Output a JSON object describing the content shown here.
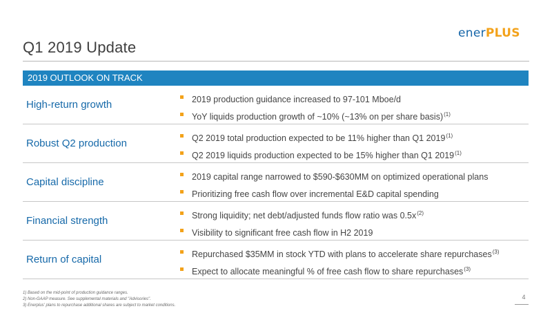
{
  "slide": {
    "title": "Q1 2019 Update",
    "page_number": "4"
  },
  "logo": {
    "part1": "ener",
    "part2": "PLUS"
  },
  "banner": "2019 OUTLOOK ON TRACK",
  "rows": [
    {
      "label": "High-return growth",
      "bullets": [
        {
          "text": "2019 production guidance increased to 97-101 Mboe/d",
          "sup": ""
        },
        {
          "text": "YoY liquids production growth of ~10% (~13% on per share basis)",
          "sup": "(1)"
        }
      ]
    },
    {
      "label": "Robust Q2 production",
      "bullets": [
        {
          "text": "Q2 2019 total production expected to be 11% higher than Q1 2019",
          "sup": "(1)"
        },
        {
          "text": "Q2 2019 liquids production expected to be 15% higher than Q1 2019",
          "sup": "(1)"
        }
      ]
    },
    {
      "label": "Capital discipline",
      "bullets": [
        {
          "text": "2019 capital range narrowed to $590-$630MM on optimized operational plans",
          "sup": ""
        },
        {
          "text": "Prioritizing free cash flow over incremental E&D capital spending",
          "sup": ""
        }
      ]
    },
    {
      "label": "Financial strength",
      "bullets": [
        {
          "text": "Strong liquidity; net debt/adjusted funds flow ratio was 0.5x",
          "sup": "(2)"
        },
        {
          "text": "Visibility to significant free cash flow in H2 2019",
          "sup": ""
        }
      ]
    },
    {
      "label": "Return of capital",
      "bullets": [
        {
          "text": "Repurchased $35MM in stock YTD with plans to accelerate share repurchases",
          "sup": "(3)"
        },
        {
          "text": "Expect to allocate meaningful % of free cash flow to share repurchases",
          "sup": "(3)"
        }
      ]
    }
  ],
  "footnotes": [
    "1)  Based on the mid-point of production guidance ranges.",
    "2)  Non-GAAP measure. See supplemental materials and \"Advisories\".",
    "3)  Enerplus' plans to repurchase additional shares are subject to market conditions."
  ],
  "colors": {
    "accent_blue": "#1f84c0",
    "label_blue": "#1669a9",
    "bullet_orange": "#f3a21a"
  }
}
